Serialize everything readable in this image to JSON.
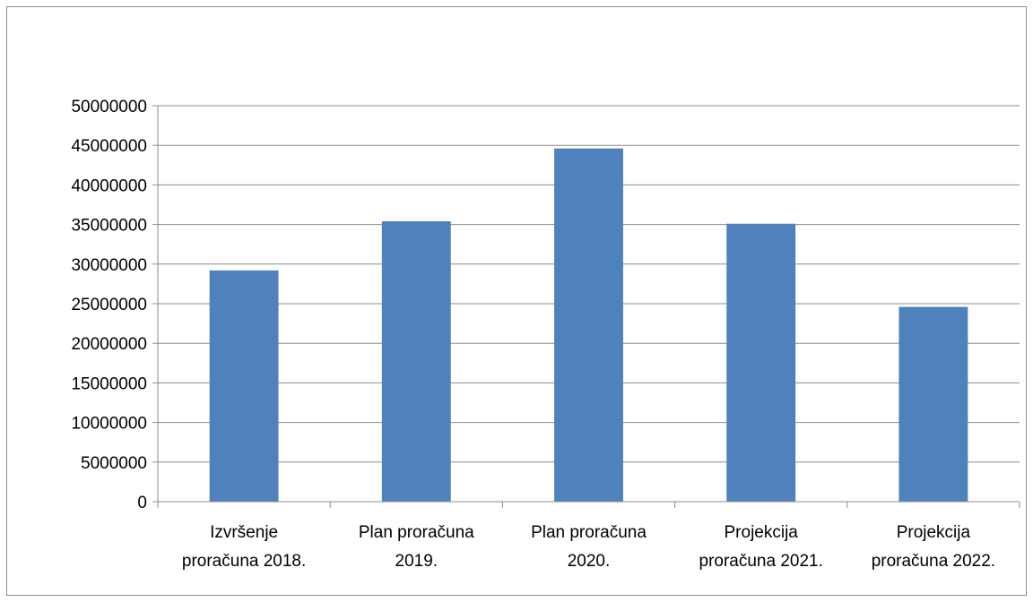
{
  "chart_data": {
    "type": "bar",
    "title": "",
    "xlabel": "",
    "ylabel": "",
    "categories": [
      [
        "Izvršenje",
        "proračuna 2018."
      ],
      [
        "Plan proračuna",
        "2019."
      ],
      [
        "Plan proračuna",
        "2020."
      ],
      [
        "Projekcija",
        "proračuna 2021."
      ],
      [
        "Projekcija",
        "proračuna 2022."
      ]
    ],
    "values": [
      29200000,
      35400000,
      44600000,
      35100000,
      24600000
    ],
    "ylim": [
      0,
      50000000
    ],
    "y_ticks": [
      "0",
      "5000000",
      "10000000",
      "15000000",
      "20000000",
      "25000000",
      "30000000",
      "35000000",
      "40000000",
      "45000000",
      "50000000"
    ],
    "grid": true,
    "legend": "none",
    "colors": {
      "bar": "#4f81bd",
      "grid": "#8c8c8c",
      "axis": "#8c8c8c"
    }
  }
}
